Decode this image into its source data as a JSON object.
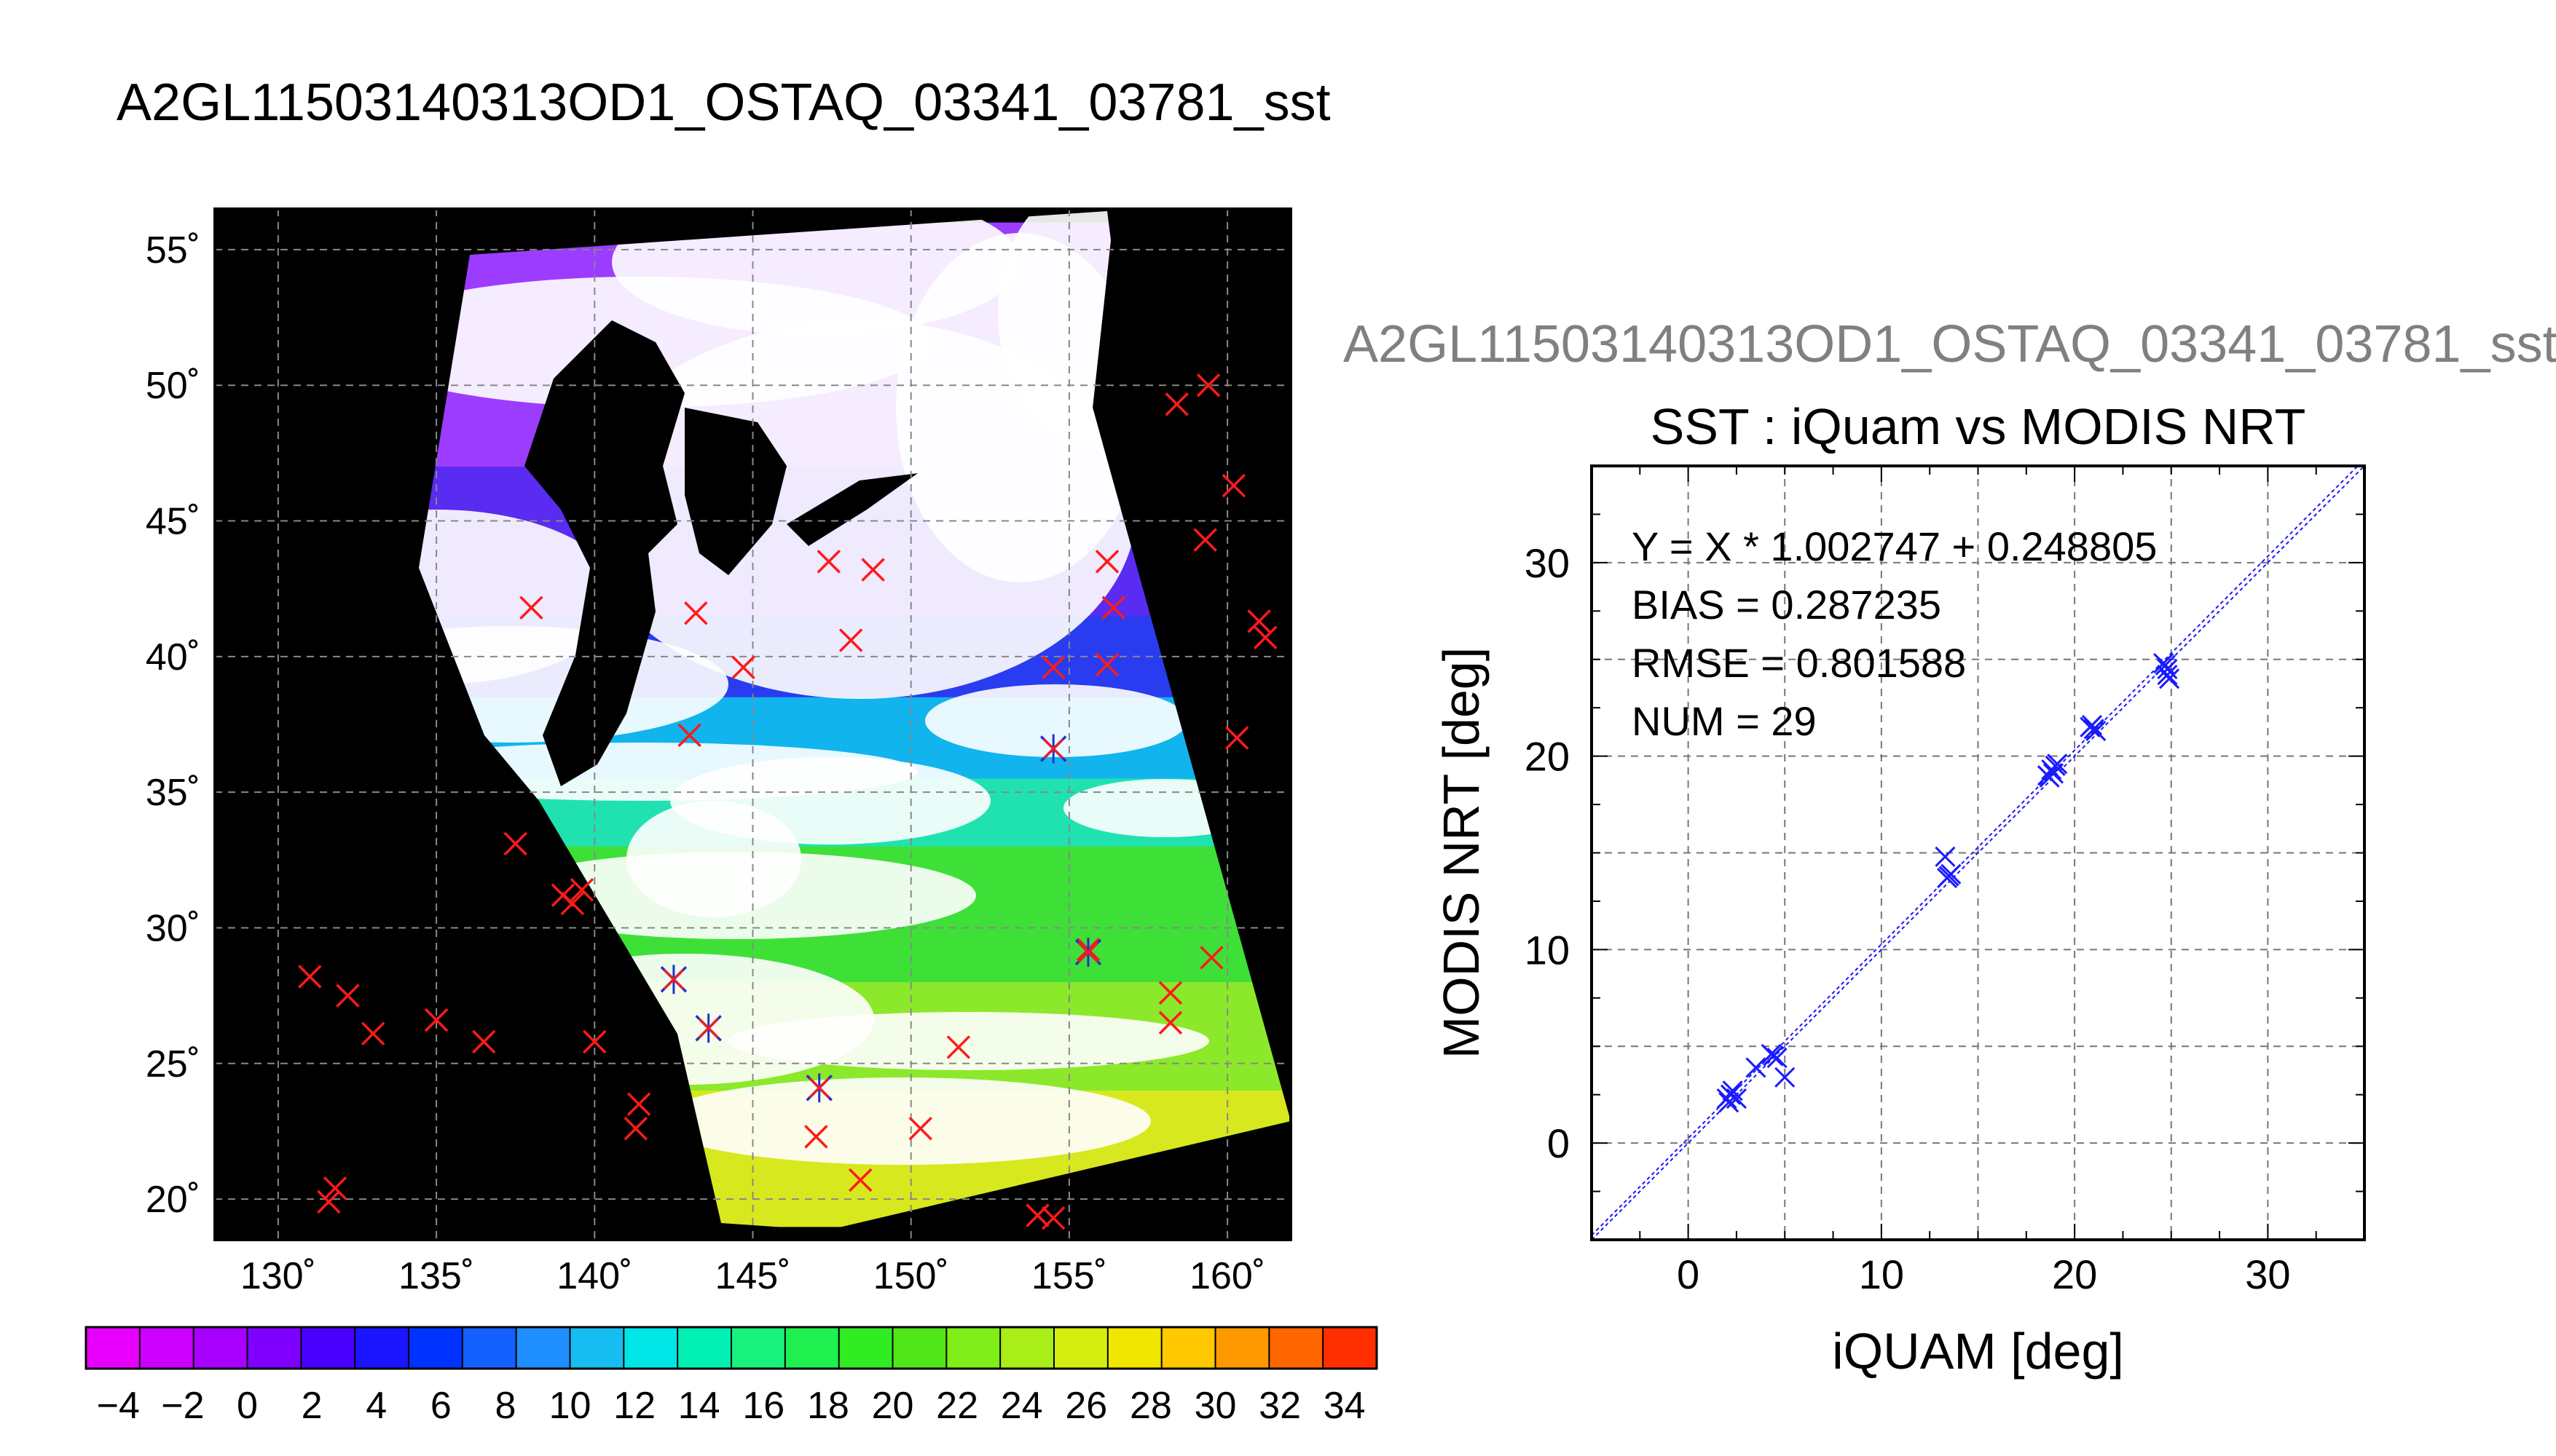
{
  "page_title": "A2GL11503140313OD1_OSTAQ_03341_03781_sst",
  "scatter_header": "A2GL11503140313OD1_OSTAQ_03341_03781_sst",
  "chart_data": [
    {
      "type": "map",
      "xlim": [
        128,
        162
      ],
      "ylim": [
        18.5,
        56.5
      ],
      "lon_ticks": [
        130,
        135,
        140,
        145,
        150,
        155,
        160
      ],
      "lat_ticks": [
        20,
        25,
        30,
        35,
        40,
        45,
        50,
        55
      ],
      "lon_tick_labels": [
        "130˚",
        "135˚",
        "140˚",
        "145˚",
        "150˚",
        "155˚",
        "160˚"
      ],
      "lat_tick_labels": [
        "20˚",
        "25˚",
        "30˚",
        "35˚",
        "40˚",
        "45˚",
        "50˚",
        "55˚"
      ],
      "grid": true,
      "background_color": "#000000",
      "cloud_color": "#ffffff",
      "marker_color_red": "#ff1a1a",
      "marker_color_blue": "#2233cc",
      "swath_bands": [
        {
          "lat_from": 56.0,
          "lat_to": 47.0,
          "color": "#9c3cff"
        },
        {
          "lat_from": 47.0,
          "lat_to": 41.5,
          "color": "#5a2bf0"
        },
        {
          "lat_from": 41.5,
          "lat_to": 38.5,
          "color": "#2a3cf0"
        },
        {
          "lat_from": 38.5,
          "lat_to": 35.5,
          "color": "#12b4ee"
        },
        {
          "lat_from": 35.5,
          "lat_to": 33.0,
          "color": "#20e2b0"
        },
        {
          "lat_from": 33.0,
          "lat_to": 28.0,
          "color": "#3ee038"
        },
        {
          "lat_from": 28.0,
          "lat_to": 24.0,
          "color": "#8ce82a"
        },
        {
          "lat_from": 24.0,
          "lat_to": 19.0,
          "color": "#d8e81e"
        }
      ],
      "markers_red": [
        [
          131.0,
          28.2
        ],
        [
          132.2,
          27.5
        ],
        [
          133.0,
          26.1
        ],
        [
          135.0,
          26.6
        ],
        [
          136.5,
          25.8
        ],
        [
          131.8,
          20.4
        ],
        [
          131.6,
          19.9
        ],
        [
          137.5,
          33.1
        ],
        [
          139.0,
          31.2
        ],
        [
          139.3,
          30.9
        ],
        [
          139.6,
          31.4
        ],
        [
          140.0,
          25.8
        ],
        [
          141.4,
          23.5
        ],
        [
          141.3,
          22.6
        ],
        [
          138.0,
          41.8
        ],
        [
          143.2,
          41.6
        ],
        [
          143.0,
          37.1
        ],
        [
          144.7,
          39.6
        ],
        [
          147.4,
          43.5
        ],
        [
          148.8,
          43.2
        ],
        [
          148.1,
          40.6
        ],
        [
          154.5,
          39.6
        ],
        [
          156.2,
          39.7
        ],
        [
          156.2,
          43.5
        ],
        [
          156.4,
          41.8
        ],
        [
          158.4,
          49.3
        ],
        [
          159.4,
          50.0
        ],
        [
          160.2,
          46.3
        ],
        [
          159.3,
          44.3
        ],
        [
          161.0,
          41.3
        ],
        [
          161.2,
          40.7
        ],
        [
          160.3,
          37.0
        ],
        [
          159.5,
          28.9
        ],
        [
          158.2,
          27.6
        ],
        [
          158.2,
          26.5
        ],
        [
          147.0,
          22.3
        ],
        [
          148.4,
          20.7
        ],
        [
          150.3,
          22.6
        ],
        [
          151.5,
          25.6
        ],
        [
          154.0,
          19.4
        ],
        [
          154.5,
          19.3
        ],
        [
          155.6,
          29.2
        ]
      ],
      "markers_blue": [
        [
          142.5,
          28.1
        ],
        [
          143.6,
          26.3
        ],
        [
          147.1,
          24.1
        ],
        [
          154.5,
          36.6
        ],
        [
          155.6,
          29.1
        ]
      ]
    },
    {
      "type": "colorbar",
      "vmin": -5,
      "vmax": 35,
      "tick_values": [
        -4,
        -2,
        0,
        2,
        4,
        6,
        8,
        10,
        12,
        14,
        16,
        18,
        20,
        22,
        24,
        26,
        28,
        30,
        32,
        34
      ],
      "tick_labels": [
        "−4",
        "−2",
        "0",
        "2",
        "4",
        "6",
        "8",
        "10",
        "12",
        "14",
        "16",
        "18",
        "20",
        "22",
        "24",
        "26",
        "28",
        "30",
        "32",
        "34"
      ],
      "colors": [
        "#e800ff",
        "#cc00ff",
        "#a800ff",
        "#7f00ff",
        "#4a00ff",
        "#1a14ff",
        "#0033ff",
        "#1460ff",
        "#1f8fff",
        "#15bdf0",
        "#00e6e6",
        "#00f0b4",
        "#19f27d",
        "#1ff050",
        "#30ec22",
        "#50e61a",
        "#80ee18",
        "#aaee18",
        "#d4ee10",
        "#f0e600",
        "#ffc800",
        "#ff9900",
        "#ff6600",
        "#ff2e00"
      ]
    },
    {
      "type": "scatter",
      "title": "SST : iQuam vs MODIS NRT",
      "xlabel": "iQUAM [deg]",
      "ylabel": "MODIS NRT [deg]",
      "xlim": [
        -5,
        35
      ],
      "ylim": [
        -5,
        35
      ],
      "ticks": [
        0,
        10,
        20,
        30
      ],
      "minor_ticks": [
        -5,
        5,
        15,
        25,
        35
      ],
      "grid": true,
      "marker_color": "#1a1aff",
      "annotations": [
        "Y = X * 1.002747 + 0.248805",
        "BIAS = 0.287235",
        "RMSE = 0.801588",
        "NUM = 29"
      ],
      "fit": {
        "slope": 1.002747,
        "intercept": 0.248805
      },
      "points": [
        [
          2.0,
          2.3
        ],
        [
          2.2,
          2.5
        ],
        [
          2.3,
          2.7
        ],
        [
          2.5,
          2.3
        ],
        [
          3.5,
          3.9
        ],
        [
          4.3,
          4.6
        ],
        [
          4.6,
          4.4
        ],
        [
          5.0,
          3.4
        ],
        [
          13.3,
          14.8
        ],
        [
          13.4,
          13.7
        ],
        [
          13.5,
          13.8
        ],
        [
          18.6,
          19.0
        ],
        [
          18.8,
          19.3
        ],
        [
          18.9,
          19.1
        ],
        [
          19.0,
          19.5
        ],
        [
          19.1,
          19.6
        ],
        [
          20.8,
          21.5
        ],
        [
          21.0,
          21.4
        ],
        [
          21.1,
          21.3
        ],
        [
          24.6,
          24.8
        ],
        [
          24.8,
          24.5
        ],
        [
          24.9,
          24.0
        ],
        [
          24.7,
          24.7
        ],
        [
          18.7,
          18.9
        ],
        [
          2.1,
          2.1
        ],
        [
          13.6,
          13.9
        ],
        [
          20.9,
          21.6
        ],
        [
          4.4,
          4.5
        ],
        [
          24.8,
          24.2
        ]
      ]
    }
  ]
}
